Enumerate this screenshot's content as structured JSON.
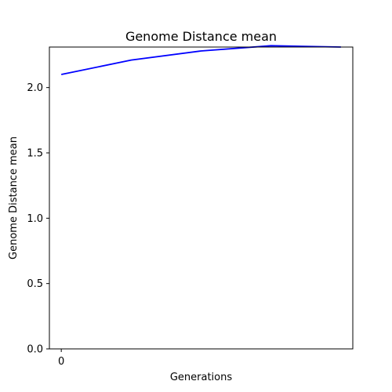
{
  "chart_data": {
    "type": "line",
    "title": "Genome Distance mean",
    "xlabel": "Generations",
    "ylabel": "Genome Distance mean",
    "x": [
      0,
      1,
      2,
      3,
      4
    ],
    "xticks": [
      0
    ],
    "xtick_labels": [
      "0"
    ],
    "xlim": [
      -0.17,
      4.17
    ],
    "yticks": [
      0.0,
      0.5,
      1.0,
      1.5,
      2.0
    ],
    "ytick_labels": [
      "0.0",
      "0.5",
      "1.0",
      "1.5",
      "2.0"
    ],
    "ylim": [
      0.0,
      2.31
    ],
    "grid": false,
    "series": [
      {
        "color": "#0000ff",
        "values": [
          2.1,
          2.21,
          2.28,
          2.32,
          2.31
        ]
      }
    ]
  }
}
